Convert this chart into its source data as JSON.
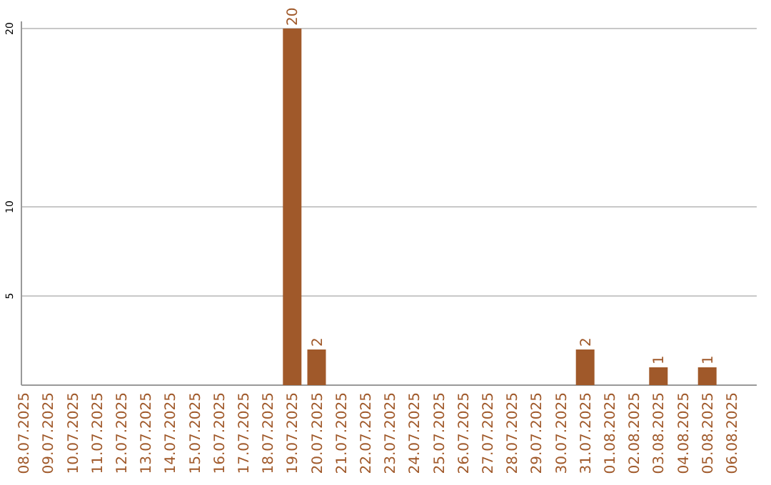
{
  "chart_data": {
    "type": "bar",
    "categories": [
      "08.07.2025",
      "09.07.2025",
      "10.07.2025",
      "11.07.2025",
      "12.07.2025",
      "13.07.2025",
      "14.07.2025",
      "15.07.2025",
      "16.07.2025",
      "17.07.2025",
      "18.07.2025",
      "19.07.2025",
      "20.07.2025",
      "21.07.2025",
      "22.07.2025",
      "23.07.2025",
      "24.07.2025",
      "25.07.2025",
      "26.07.2025",
      "27.07.2025",
      "28.07.2025",
      "29.07.2025",
      "30.07.2025",
      "31.07.2025",
      "01.08.2025",
      "02.08.2025",
      "03.08.2025",
      "04.08.2025",
      "05.08.2025",
      "06.08.2025"
    ],
    "values": [
      0,
      0,
      0,
      0,
      0,
      0,
      0,
      0,
      0,
      0,
      0,
      20,
      2,
      0,
      0,
      0,
      0,
      0,
      0,
      0,
      0,
      0,
      0,
      2,
      0,
      0,
      1,
      0,
      1,
      0
    ],
    "value_labels": [
      null,
      null,
      null,
      null,
      null,
      null,
      null,
      null,
      null,
      null,
      null,
      "20",
      "2",
      null,
      null,
      null,
      null,
      null,
      null,
      null,
      null,
      null,
      null,
      "2",
      null,
      null,
      "1",
      null,
      "1",
      null
    ],
    "color": "#a0592a",
    "ylim": [
      0,
      20
    ],
    "yticks": [
      5,
      10,
      20
    ],
    "grid": "y"
  }
}
